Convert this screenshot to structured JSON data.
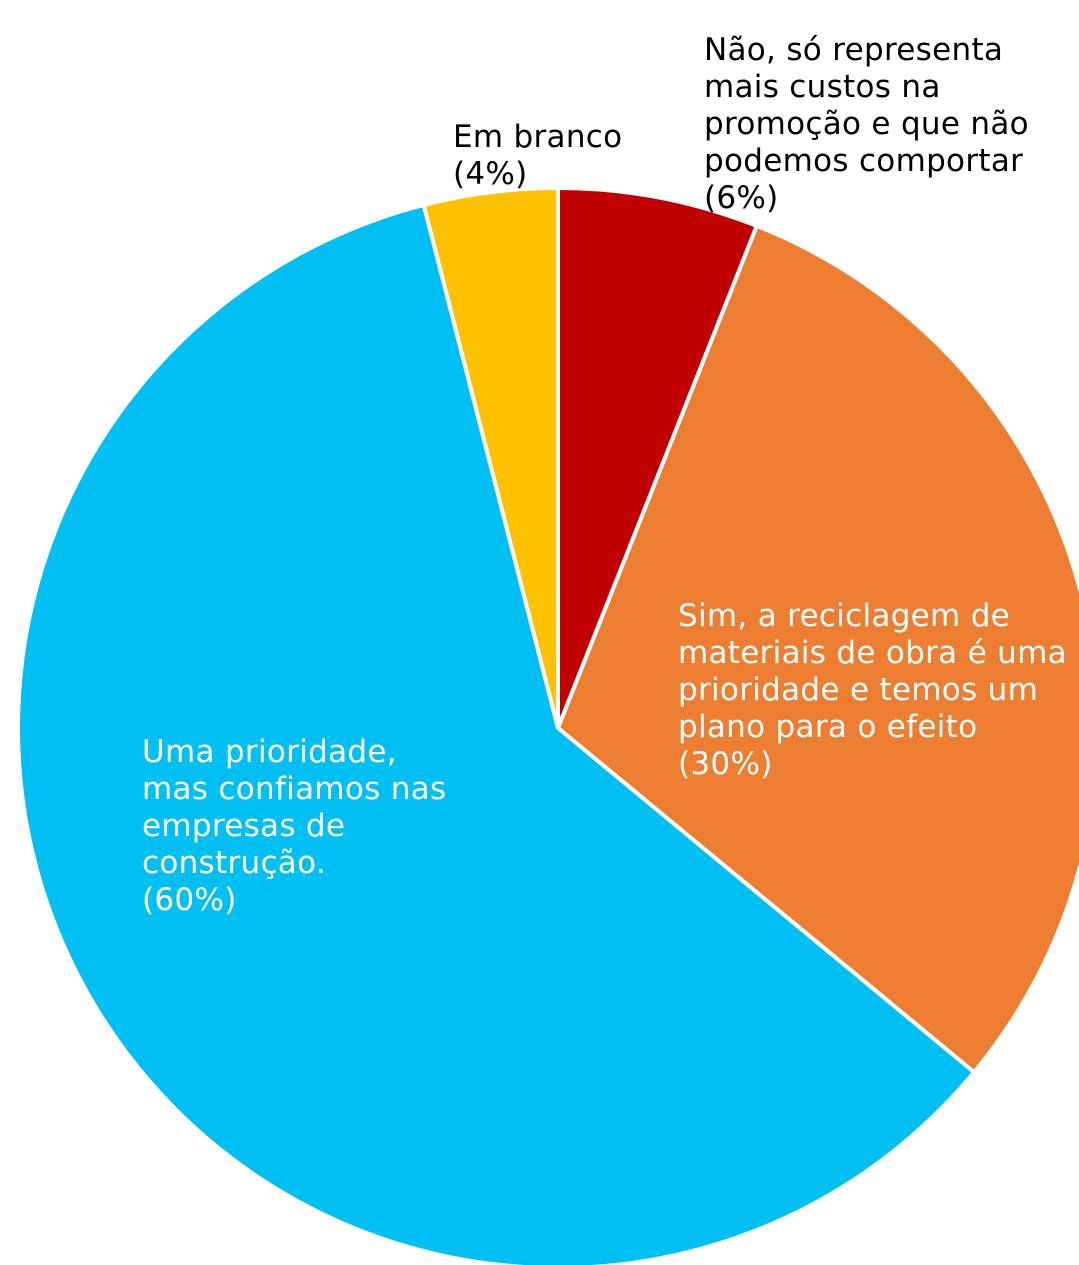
{
  "chart_data": {
    "type": "pie",
    "start_angle_deg": 0,
    "direction": "clockwise",
    "slices": [
      {
        "lines": [
          "Não, só representa",
          "mais custos na",
          "promoção e que não",
          "podemos comportar"
        ],
        "value_label": "(6%)",
        "value": 6,
        "color": "#C00000",
        "label_color": "#000000"
      },
      {
        "lines": [
          "Sim, a reciclagem de",
          "materiais de obra é uma",
          "prioridade e temos um",
          "plano para o efeito"
        ],
        "value_label": "(30%)",
        "value": 30,
        "color": "#ED7D31",
        "label_color": "#FFFFFF"
      },
      {
        "lines": [
          "Uma prioridade,",
          "mas confiamos nas",
          "empresas de",
          "construção."
        ],
        "value_label": "(60%)",
        "value": 60,
        "color": "#00BFF3",
        "label_color": "#FFFFFF"
      },
      {
        "lines": [
          "Em branco"
        ],
        "value_label": "(4%)",
        "value": 4,
        "color": "#FFC000",
        "label_color": "#000000"
      }
    ],
    "slice_border_color": "#FFFFFF"
  }
}
